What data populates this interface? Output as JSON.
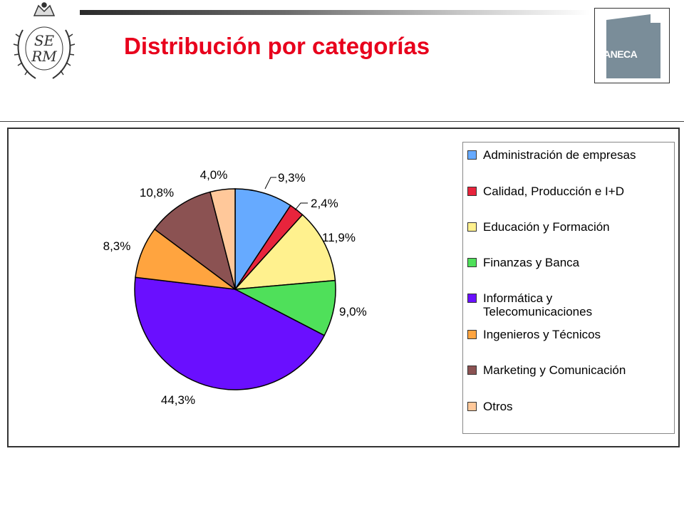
{
  "title": "Distribución por categorías",
  "logo": {
    "text": "ANECA"
  },
  "crest": {
    "name": "rsme-crest-icon",
    "monogram": "RSME"
  },
  "chart_data": {
    "type": "pie",
    "title": "Distribución por categorías",
    "legend_position": "right",
    "slices": [
      {
        "label": "Administración de empresas",
        "value": 9.3,
        "display": "9,3%",
        "color": "#66aaff"
      },
      {
        "label": "Calidad, Producción e I+D",
        "value": 2.4,
        "display": "2,4%",
        "color": "#e8243c"
      },
      {
        "label": "Educación y Formación",
        "value": 11.9,
        "display": "11,9%",
        "color": "#fff18e"
      },
      {
        "label": "Finanzas y Banca",
        "value": 9.0,
        "display": "9,0%",
        "color": "#4fe05a"
      },
      {
        "label": "Informática y Telecomunicaciones",
        "label_lines": [
          "Informática y",
          "Telecomunicaciones"
        ],
        "value": 44.3,
        "display": "44,3%",
        "color": "#6a0fff"
      },
      {
        "label": "Ingenieros y Técnicos",
        "value": 8.3,
        "display": "8,3%",
        "color": "#ffa43f"
      },
      {
        "label": "Marketing y Comunicación",
        "value": 10.8,
        "display": "10,8%",
        "color": "#8b5252"
      },
      {
        "label": "Otros",
        "value": 4.0,
        "display": "4,0%",
        "color": "#ffc89a"
      }
    ]
  }
}
